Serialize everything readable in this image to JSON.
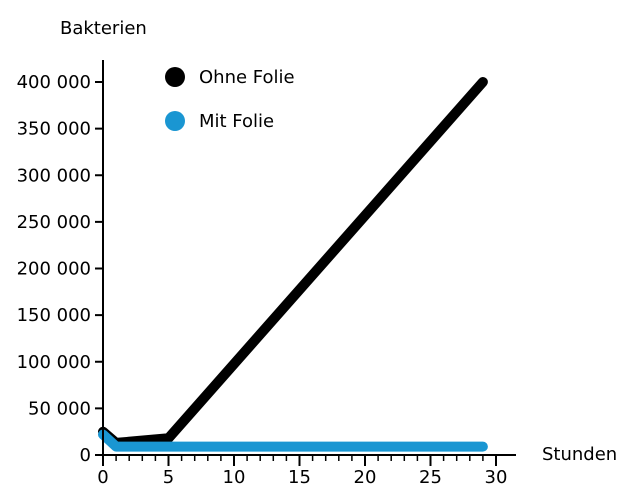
{
  "chart_data": {
    "type": "line",
    "title": "",
    "xlabel": "Stunden",
    "ylabel": "Bakterien",
    "xlim": [
      0,
      30
    ],
    "ylim": [
      0,
      400000
    ],
    "x_ticks": [
      0,
      5,
      10,
      15,
      20,
      25,
      30
    ],
    "x_tick_labels": [
      "0",
      "5",
      "10",
      "15",
      "20",
      "25",
      "30"
    ],
    "x_minor_step": 1,
    "y_ticks": [
      0,
      50000,
      100000,
      150000,
      200000,
      250000,
      300000,
      350000,
      400000
    ],
    "y_tick_labels": [
      "0",
      "50 000",
      "100 000",
      "150 000",
      "200 000",
      "250 000",
      "300 000",
      "350 000",
      "400 000"
    ],
    "grid": false,
    "legend_position": "top-left",
    "series": [
      {
        "name": "Ohne Folie",
        "color": "#000000",
        "points": [
          [
            0,
            25000
          ],
          [
            1,
            13000
          ],
          [
            5,
            18000
          ],
          [
            29,
            400000
          ]
        ]
      },
      {
        "name": "Mit Folie",
        "color": "#1a96d2",
        "points": [
          [
            0,
            22000
          ],
          [
            1,
            9000
          ],
          [
            29,
            9000
          ]
        ]
      }
    ]
  }
}
